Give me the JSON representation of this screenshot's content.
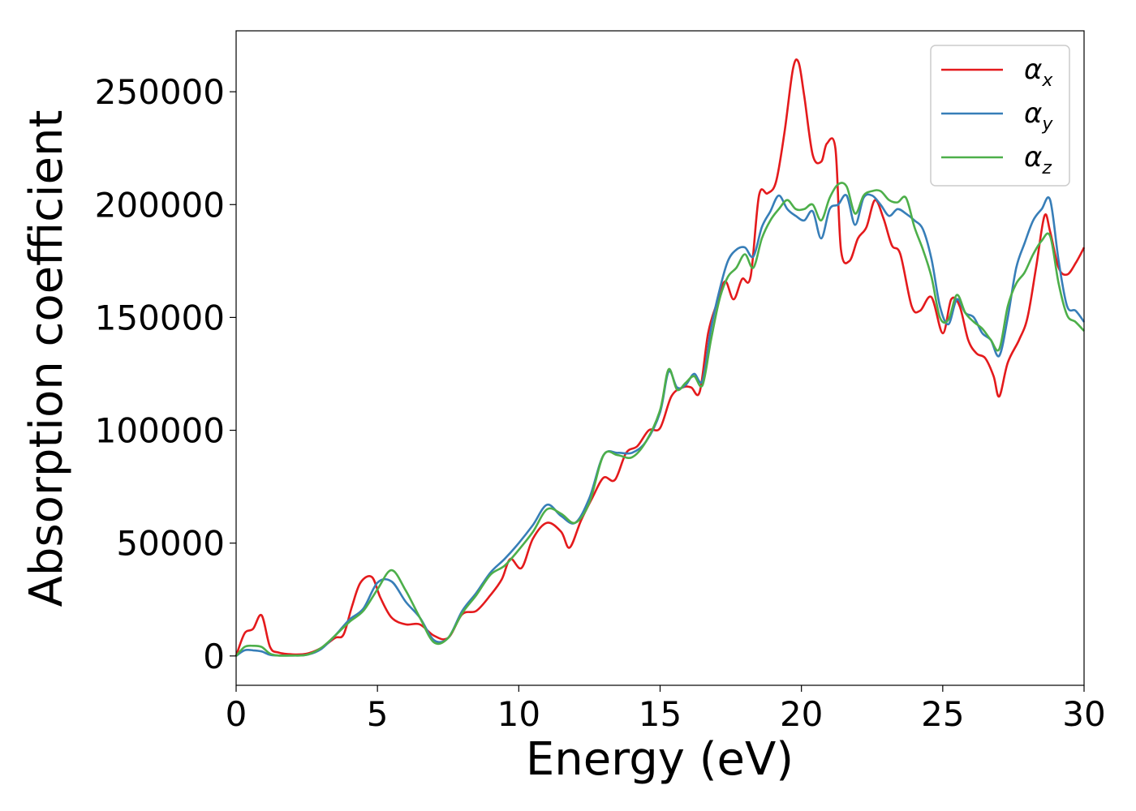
{
  "chart_data": {
    "type": "line",
    "title": "",
    "xlabel": "Energy (eV)",
    "ylabel": "Absorption coefficient",
    "xlim": [
      0,
      30
    ],
    "ylim": [
      -13000,
      277000
    ],
    "xticks": [
      0,
      5,
      10,
      15,
      20,
      25,
      30
    ],
    "xtick_labels": [
      "0",
      "5",
      "10",
      "15",
      "20",
      "25",
      "30"
    ],
    "yticks": [
      0,
      50000,
      100000,
      150000,
      200000,
      250000
    ],
    "ytick_labels": [
      "0",
      "50000",
      "100000",
      "150000",
      "200000",
      "250000"
    ],
    "grid": false,
    "legend_position": "top-right",
    "series": [
      {
        "name": "α_x",
        "legend_base": "α",
        "legend_sub": "x",
        "color": "#e41a1c",
        "x": [
          0,
          0.3,
          0.6,
          0.9,
          1.2,
          1.5,
          2,
          2.5,
          3,
          3.5,
          3.8,
          4.1,
          4.4,
          4.8,
          5.1,
          5.5,
          6,
          6.5,
          7,
          7.5,
          8,
          8.5,
          9,
          9.4,
          9.7,
          10.1,
          10.5,
          11,
          11.5,
          11.8,
          12.2,
          12.6,
          13,
          13.4,
          13.8,
          14.2,
          14.6,
          15,
          15.4,
          15.8,
          16.1,
          16.4,
          16.7,
          17,
          17.3,
          17.6,
          17.9,
          18.2,
          18.5,
          18.8,
          19.1,
          19.4,
          19.7,
          19.9,
          20.1,
          20.4,
          20.7,
          20.9,
          21.2,
          21.4,
          21.7,
          22,
          22.3,
          22.6,
          22.9,
          23.2,
          23.5,
          23.9,
          24.2,
          24.6,
          25,
          25.3,
          25.6,
          25.9,
          26.2,
          26.5,
          26.8,
          27,
          27.3,
          27.7,
          28,
          28.3,
          28.6,
          28.8,
          29.1,
          29.4,
          29.7,
          30
        ],
        "y": [
          0,
          10000,
          12000,
          18000,
          4000,
          1500,
          700,
          1000,
          3500,
          8000,
          9500,
          22000,
          32500,
          35000,
          26000,
          17000,
          14000,
          14000,
          9000,
          8000,
          18500,
          20000,
          27000,
          34000,
          43000,
          39000,
          52000,
          59000,
          55000,
          48000,
          60000,
          70000,
          79000,
          78000,
          90000,
          93000,
          100000,
          101000,
          115000,
          119000,
          119000,
          117000,
          143000,
          156000,
          166000,
          158000,
          167000,
          168000,
          204000,
          205000,
          210000,
          232000,
          260000,
          263000,
          248000,
          222000,
          219000,
          227000,
          225000,
          180000,
          175000,
          185000,
          190000,
          202000,
          194000,
          182000,
          178000,
          155000,
          153000,
          159000,
          143000,
          158000,
          155000,
          140000,
          134000,
          132000,
          124000,
          115000,
          130000,
          140000,
          150000,
          172000,
          195000,
          188000,
          172000,
          169000,
          174000,
          181000
        ]
      },
      {
        "name": "α_y",
        "legend_base": "α",
        "legend_sub": "y",
        "color": "#377eb8",
        "x": [
          0,
          0.3,
          0.6,
          0.9,
          1.2,
          1.5,
          2,
          2.5,
          3,
          3.5,
          4,
          4.5,
          5,
          5.5,
          6,
          6.5,
          7,
          7.5,
          8,
          8.5,
          9,
          9.5,
          10,
          10.5,
          11,
          11.5,
          12,
          12.5,
          13,
          13.5,
          14,
          14.5,
          15,
          15.3,
          15.6,
          15.9,
          16.2,
          16.5,
          16.8,
          17.1,
          17.4,
          17.7,
          18,
          18.3,
          18.6,
          18.9,
          19.2,
          19.5,
          19.8,
          20.1,
          20.4,
          20.7,
          21,
          21.3,
          21.6,
          21.9,
          22.2,
          22.5,
          22.8,
          23.1,
          23.4,
          23.7,
          24,
          24.3,
          24.6,
          24.9,
          25.2,
          25.5,
          25.8,
          26.1,
          26.4,
          26.7,
          27,
          27.3,
          27.6,
          27.9,
          28.2,
          28.5,
          28.8,
          29.1,
          29.4,
          29.7,
          30
        ],
        "y": [
          0,
          2500,
          2500,
          2000,
          500,
          200,
          200,
          500,
          3000,
          9000,
          16000,
          21000,
          32500,
          33000,
          24000,
          17000,
          7000,
          8000,
          20000,
          28000,
          37000,
          43000,
          50000,
          58000,
          67000,
          62000,
          59000,
          70000,
          89000,
          90000,
          90000,
          95000,
          108000,
          126000,
          119000,
          120000,
          125000,
          122000,
          145000,
          162000,
          175000,
          180000,
          181000,
          177000,
          190000,
          197000,
          204000,
          198000,
          195000,
          193000,
          197000,
          185000,
          198000,
          200000,
          204000,
          191000,
          203000,
          204000,
          200000,
          195000,
          198000,
          196000,
          193000,
          189000,
          176000,
          155000,
          147000,
          158000,
          152000,
          150000,
          143000,
          140000,
          133000,
          150000,
          172000,
          183000,
          193000,
          198000,
          202000,
          175000,
          155000,
          153000,
          148000
        ]
      },
      {
        "name": "α_z",
        "legend_base": "α",
        "legend_sub": "z",
        "color": "#4daf4a",
        "x": [
          0,
          0.3,
          0.6,
          0.9,
          1.2,
          1.5,
          2,
          2.5,
          3,
          3.5,
          4,
          4.5,
          5,
          5.5,
          6,
          6.5,
          7,
          7.5,
          8,
          8.5,
          9,
          9.5,
          10,
          10.5,
          11,
          11.5,
          12,
          12.5,
          13,
          13.5,
          14,
          14.5,
          15,
          15.3,
          15.6,
          15.9,
          16.2,
          16.5,
          16.8,
          17.1,
          17.4,
          17.7,
          18,
          18.3,
          18.6,
          18.9,
          19.2,
          19.5,
          19.8,
          20.1,
          20.4,
          20.7,
          21,
          21.3,
          21.6,
          21.9,
          22.2,
          22.5,
          22.8,
          23.1,
          23.4,
          23.7,
          24,
          24.3,
          24.6,
          24.9,
          25.2,
          25.5,
          25.8,
          26.1,
          26.4,
          26.7,
          27,
          27.3,
          27.6,
          27.9,
          28.2,
          28.5,
          28.8,
          29.1,
          29.4,
          29.7,
          30
        ],
        "y": [
          0,
          4000,
          4500,
          4000,
          1000,
          200,
          200,
          500,
          3500,
          9000,
          15000,
          20000,
          29500,
          38000,
          29000,
          17000,
          6000,
          8000,
          19000,
          27000,
          36000,
          40000,
          47000,
          55000,
          65000,
          63000,
          59000,
          68000,
          89000,
          89000,
          88000,
          95000,
          109000,
          127000,
          118000,
          121000,
          124000,
          120000,
          140000,
          158000,
          168000,
          172000,
          178000,
          172000,
          185000,
          193000,
          198000,
          202000,
          198000,
          198000,
          200000,
          193000,
          203000,
          209000,
          208000,
          196000,
          204000,
          206000,
          206000,
          202000,
          201000,
          203000,
          190000,
          180000,
          168000,
          150000,
          149000,
          160000,
          152000,
          148000,
          145000,
          140000,
          136000,
          155000,
          165000,
          170000,
          178000,
          184000,
          186000,
          165000,
          151000,
          148000,
          144000
        ]
      }
    ]
  }
}
